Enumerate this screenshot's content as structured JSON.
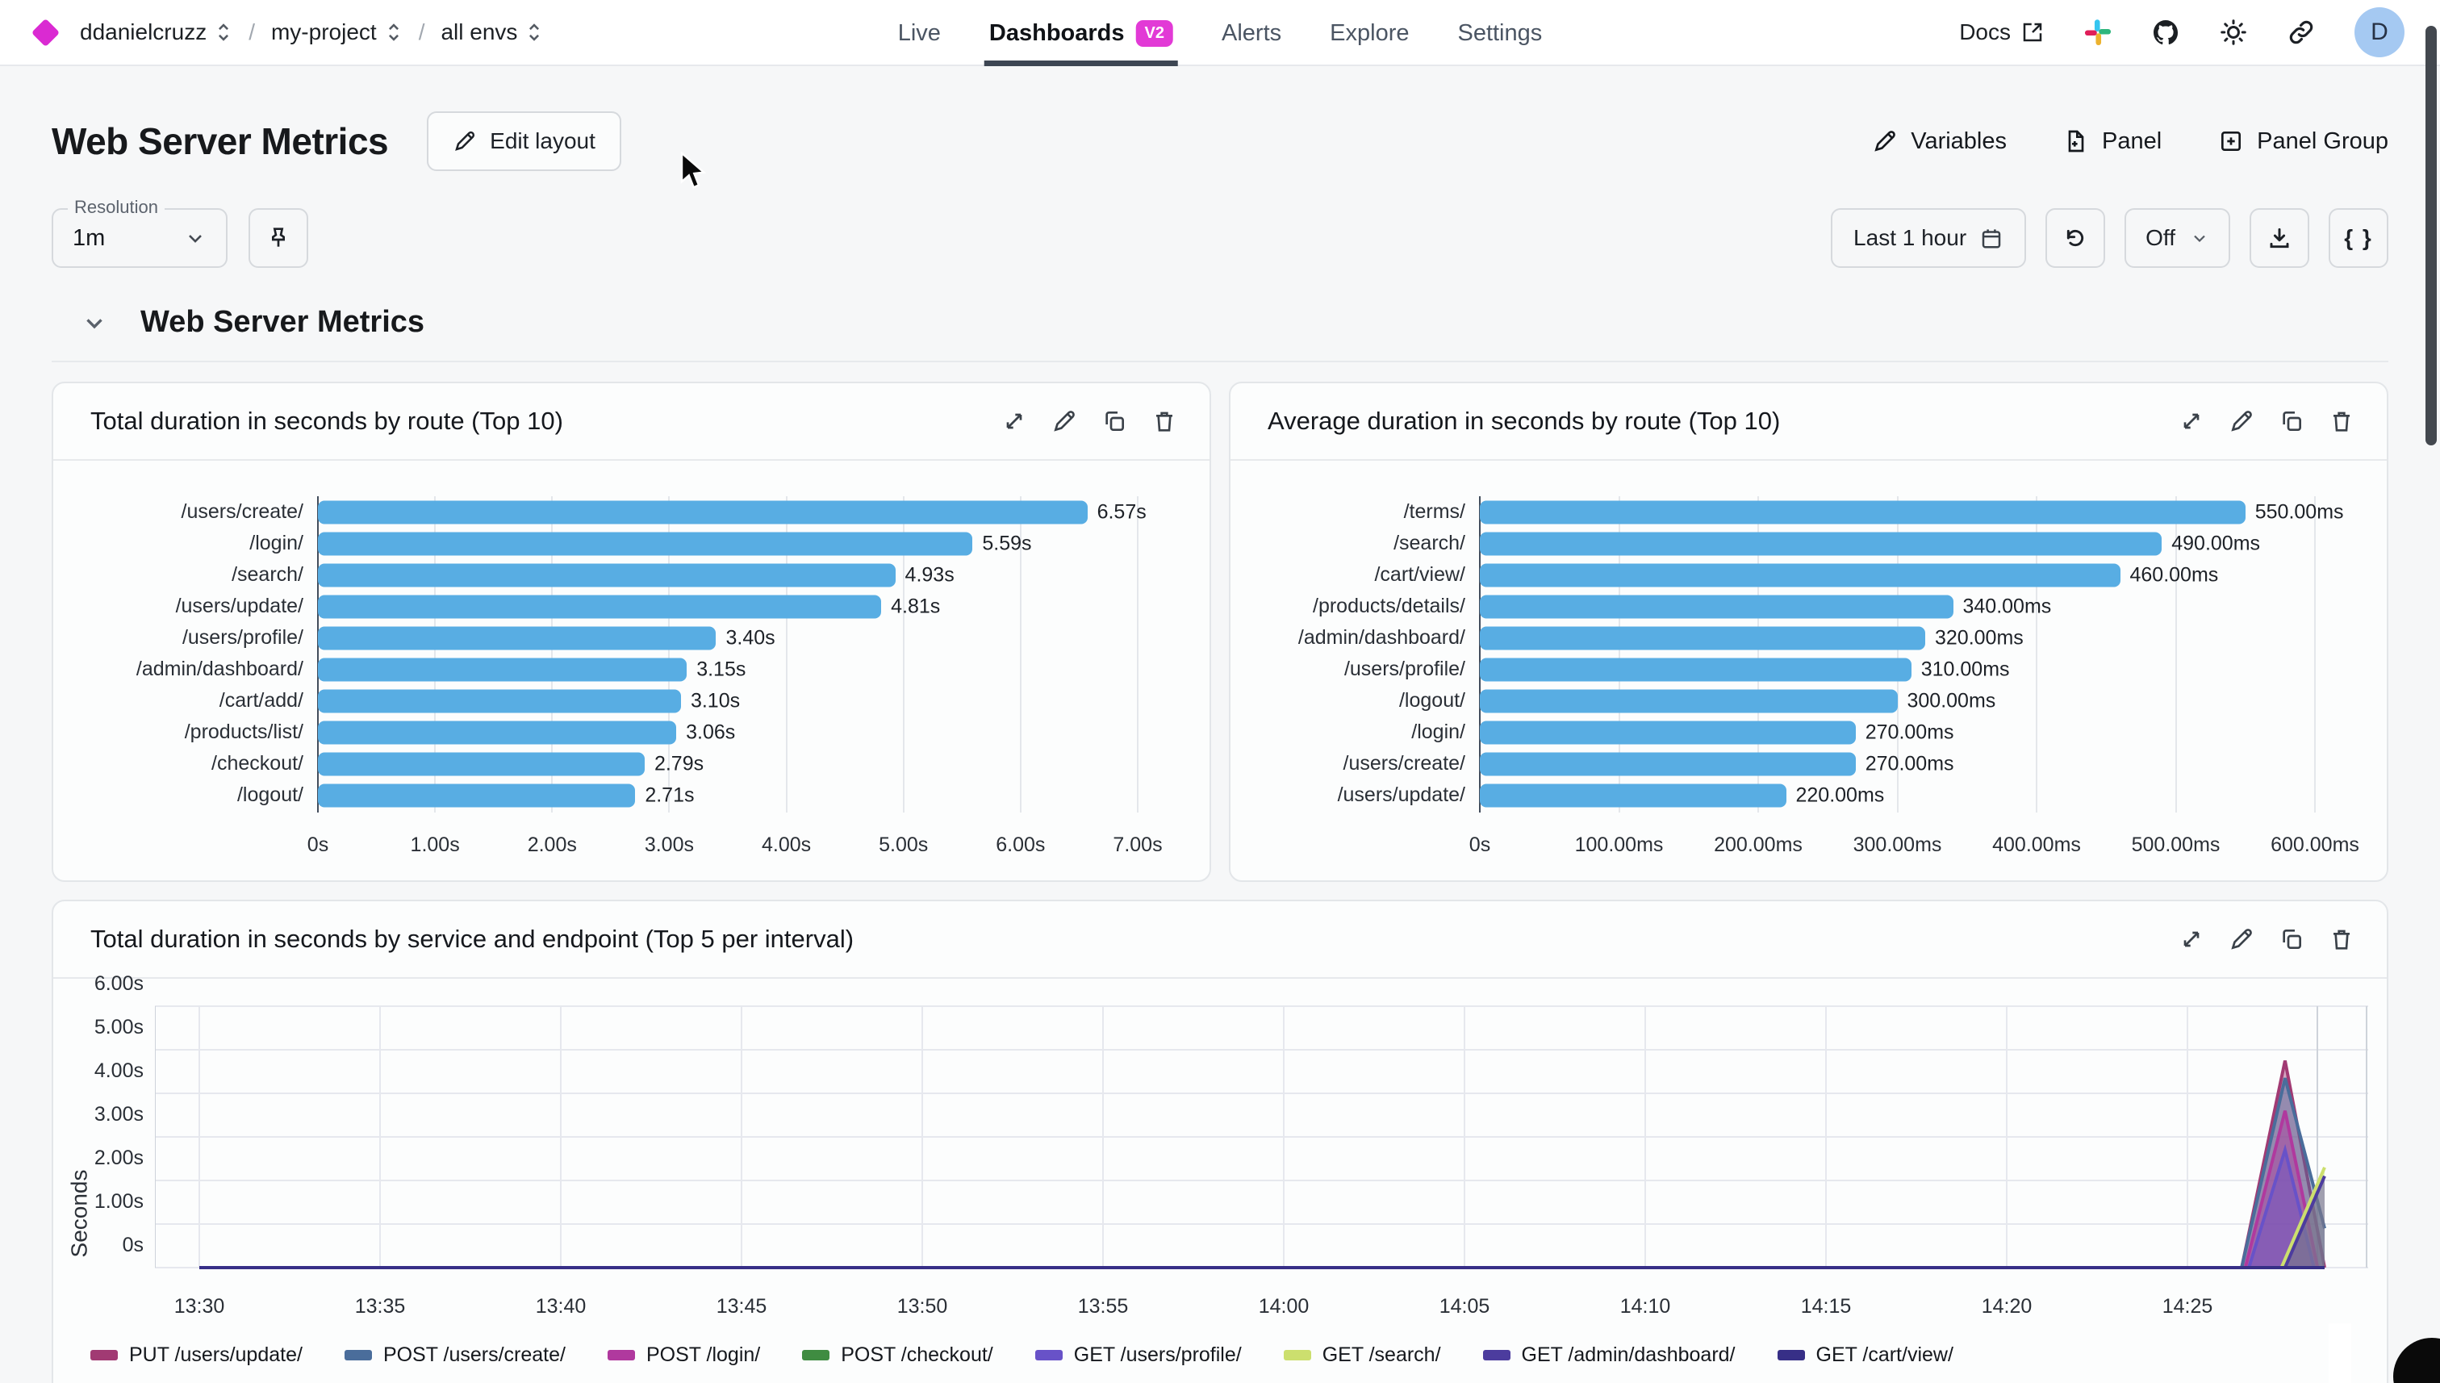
{
  "nav": {
    "breadcrumb": [
      {
        "label": "ddanielcruzz"
      },
      {
        "label": "my-project"
      },
      {
        "label": "all envs"
      }
    ],
    "tabs": [
      {
        "label": "Live",
        "active": false
      },
      {
        "label": "Dashboards",
        "badge": "V2",
        "active": true
      },
      {
        "label": "Alerts",
        "active": false
      },
      {
        "label": "Explore",
        "active": false
      },
      {
        "label": "Settings",
        "active": false
      }
    ],
    "docs_label": "Docs",
    "avatar_initial": "D"
  },
  "header": {
    "title": "Web Server Metrics",
    "edit_layout_label": "Edit layout",
    "actions": [
      {
        "label": "Variables"
      },
      {
        "label": "Panel"
      },
      {
        "label": "Panel Group"
      }
    ]
  },
  "toolbar": {
    "resolution_label": "Resolution",
    "resolution_value": "1m",
    "time_range": "Last 1 hour",
    "refresh_interval": "Off",
    "braces_label": "{ }"
  },
  "section": {
    "title": "Web Server Metrics"
  },
  "colors": {
    "accent_magenta": "#e23ad6",
    "bar_blue": "#58ade3",
    "active_tab_underline": "#3d4653",
    "avatar_bg": "#a5c9f2"
  },
  "chart_data": [
    {
      "type": "bar",
      "orientation": "horizontal",
      "title": "Total duration in seconds by route (Top 10)",
      "categories": [
        "/users/create/",
        "/login/",
        "/search/",
        "/users/update/",
        "/users/profile/",
        "/admin/dashboard/",
        "/cart/add/",
        "/products/list/",
        "/checkout/",
        "/logout/"
      ],
      "values": [
        6.57,
        5.59,
        4.93,
        4.81,
        3.4,
        3.15,
        3.1,
        3.06,
        2.79,
        2.71
      ],
      "value_labels": [
        "6.57s",
        "5.59s",
        "4.93s",
        "4.81s",
        "3.40s",
        "3.15s",
        "3.10s",
        "3.06s",
        "2.79s",
        "2.71s"
      ],
      "x_ticks": [
        "0s",
        "1.00s",
        "2.00s",
        "3.00s",
        "4.00s",
        "5.00s",
        "6.00s",
        "7.00s"
      ],
      "x_max": 7.0,
      "bar_color": "#58ade3",
      "grid": true
    },
    {
      "type": "bar",
      "orientation": "horizontal",
      "title": "Average duration in seconds by route (Top 10)",
      "categories": [
        "/terms/",
        "/search/",
        "/cart/view/",
        "/products/details/",
        "/admin/dashboard/",
        "/users/profile/",
        "/logout/",
        "/login/",
        "/users/create/",
        "/users/update/"
      ],
      "values": [
        550,
        490,
        460,
        340,
        320,
        310,
        300,
        270,
        270,
        220
      ],
      "value_labels": [
        "550.00ms",
        "490.00ms",
        "460.00ms",
        "340.00ms",
        "320.00ms",
        "310.00ms",
        "300.00ms",
        "270.00ms",
        "270.00ms",
        "220.00ms"
      ],
      "x_ticks": [
        "0s",
        "100.00ms",
        "200.00ms",
        "300.00ms",
        "400.00ms",
        "500.00ms",
        "600.00ms"
      ],
      "x_max": 600,
      "bar_color": "#58ade3",
      "grid": true
    },
    {
      "type": "area",
      "title": "Total duration in seconds by service and endpoint (Top 5 per interval)",
      "ylabel": "Seconds",
      "y_ticks": [
        "6.00s",
        "5.00s",
        "4.00s",
        "3.00s",
        "2.00s",
        "1.00s",
        "0s"
      ],
      "y_max": 6,
      "x_ticks": [
        "13:30",
        "13:35",
        "13:40",
        "13:45",
        "13:50",
        "13:55",
        "14:00",
        "14:05",
        "14:10",
        "14:15",
        "14:20",
        "14:25"
      ],
      "legend_position": "bottom",
      "grid": true,
      "series": [
        {
          "name": "PUT /users/update/",
          "color": "#a13a73",
          "points": [
            [
              0,
              0
            ],
            [
              56.5,
              0
            ],
            [
              57.7,
              4.75
            ],
            [
              58.8,
              0
            ]
          ]
        },
        {
          "name": "POST /users/create/",
          "color": "#4a6d9b",
          "points": [
            [
              0,
              0
            ],
            [
              56.5,
              0
            ],
            [
              57.7,
              4.35
            ],
            [
              58.8,
              0.9
            ]
          ]
        },
        {
          "name": "POST /login/",
          "color": "#b0399e",
          "points": [
            [
              0,
              0
            ],
            [
              56.6,
              0
            ],
            [
              57.7,
              3.6
            ],
            [
              58.6,
              0
            ]
          ]
        },
        {
          "name": "POST /checkout/",
          "color": "#3f8c41",
          "points": [
            [
              0,
              0
            ],
            [
              58.8,
              0
            ]
          ]
        },
        {
          "name": "GET /users/profile/",
          "color": "#6852c8",
          "points": [
            [
              0,
              0
            ],
            [
              56.7,
              0
            ],
            [
              57.7,
              2.7
            ],
            [
              58.5,
              0
            ]
          ]
        },
        {
          "name": "GET /search/",
          "color": "#ccdf6e",
          "points": [
            [
              0,
              0
            ],
            [
              57.6,
              0
            ],
            [
              58.8,
              2.3
            ]
          ]
        },
        {
          "name": "GET /admin/dashboard/",
          "color": "#4c3c9e",
          "points": [
            [
              0,
              0
            ],
            [
              57.7,
              0
            ],
            [
              58.8,
              2.1
            ]
          ]
        },
        {
          "name": "GET /cart/view/",
          "color": "#372f87",
          "points": [
            [
              0,
              0
            ],
            [
              58.8,
              0
            ]
          ]
        }
      ]
    }
  ]
}
